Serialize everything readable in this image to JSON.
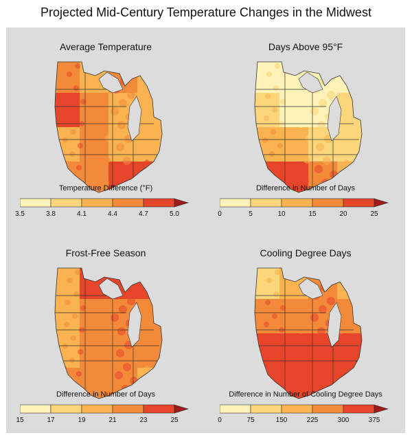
{
  "title": "Projected Mid-Century Temperature Changes in the Midwest",
  "panels": [
    {
      "title": "Average Temperature",
      "legend_title": "Temperature Difference (°F)",
      "ticks": [
        "3.5",
        "3.8",
        "4.1",
        "4.4",
        "4.7",
        "5.0"
      ],
      "colors": [
        "#fdf2b8",
        "#fdd57a",
        "#f9b350",
        "#f28a3a",
        "#e6452a"
      ],
      "arrow_color": "#9e1b1b",
      "fill_levels": [
        3,
        2,
        3,
        2,
        4,
        3,
        2,
        2,
        2,
        3,
        2,
        2,
        3,
        3,
        4,
        4
      ]
    },
    {
      "title": "Days Above 95°F",
      "legend_title": "Difference in Number of Days",
      "ticks": [
        "0",
        "5",
        "10",
        "15",
        "20",
        "25"
      ],
      "colors": [
        "#fdf2b8",
        "#fdd57a",
        "#f9b350",
        "#f28a3a",
        "#e6452a"
      ],
      "arrow_color": "#9e1b1b",
      "fill_levels": [
        0,
        0,
        0,
        0,
        1,
        0,
        0,
        1,
        2,
        2,
        1,
        1,
        4,
        4,
        3,
        2
      ]
    },
    {
      "title": "Frost-Free Season",
      "legend_title": "Difference in Number of Days",
      "ticks": [
        "15",
        "17",
        "19",
        "21",
        "23",
        "25"
      ],
      "colors": [
        "#fdf2b8",
        "#fdd57a",
        "#f9b350",
        "#f28a3a",
        "#e6452a"
      ],
      "arrow_color": "#9e1b1b",
      "fill_levels": [
        2,
        4,
        4,
        4,
        2,
        3,
        3,
        3,
        2,
        3,
        3,
        3,
        3,
        3,
        3,
        2
      ]
    },
    {
      "title": "Cooling Degree Days",
      "legend_title": "Difference in Number of Cooling Degree Days",
      "ticks": [
        "0",
        "75",
        "150",
        "225",
        "300",
        "375"
      ],
      "colors": [
        "#fdf2b8",
        "#fdd57a",
        "#f9b350",
        "#f28a3a",
        "#e6452a"
      ],
      "arrow_color": "#9e1b1b",
      "fill_levels": [
        1,
        2,
        3,
        2,
        3,
        3,
        3,
        3,
        4,
        4,
        4,
        4,
        4,
        4,
        4,
        4
      ]
    }
  ]
}
